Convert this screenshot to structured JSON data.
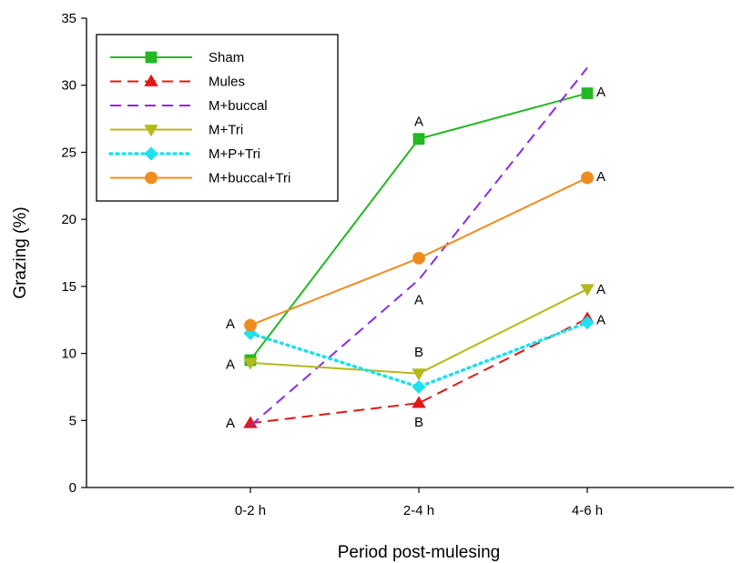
{
  "chart_data": {
    "type": "line",
    "title": "",
    "xlabel": "Period post-mulesing",
    "ylabel": "Grazing (%)",
    "categories": [
      "0-2 h",
      "2-4 h",
      "4-6 h"
    ],
    "ylim": [
      0,
      35
    ],
    "yticks": [
      0,
      5,
      10,
      15,
      20,
      25,
      30,
      35
    ],
    "grid": false,
    "legend_position": "top-left",
    "series": [
      {
        "name": "Sham",
        "values": [
          9.5,
          26.0,
          29.4
        ],
        "color": "#22b822",
        "dash": "solid",
        "marker": "square"
      },
      {
        "name": "Mules",
        "values": [
          4.8,
          6.3,
          12.6
        ],
        "color": "#e01818",
        "dash": "dashed",
        "marker": "triangle-up"
      },
      {
        "name": "M+buccal",
        "values": [
          4.6,
          15.5,
          31.3
        ],
        "color": "#8a2be2",
        "dash": "dashed",
        "marker": "none"
      },
      {
        "name": "M+Tri",
        "values": [
          9.3,
          8.5,
          14.8
        ],
        "color": "#b5b81a",
        "dash": "solid",
        "marker": "triangle-down"
      },
      {
        "name": "M+P+Tri",
        "values": [
          11.5,
          7.5,
          12.3
        ],
        "color": "#1ee0ee",
        "dash": "dotted",
        "marker": "diamond"
      },
      {
        "name": "M+buccal+Tri",
        "values": [
          12.1,
          17.1,
          23.1
        ],
        "color": "#f08c1e",
        "dash": "solid",
        "marker": "circle"
      }
    ],
    "annotations": [
      {
        "text": "A",
        "category": "0-2 h",
        "y": 12.2,
        "side": "left"
      },
      {
        "text": "A",
        "category": "0-2 h",
        "y": 9.2,
        "side": "left"
      },
      {
        "text": "A",
        "category": "0-2 h",
        "y": 4.8,
        "side": "left"
      },
      {
        "text": "A",
        "category": "2-4 h",
        "y": 27.3,
        "side": "above"
      },
      {
        "text": "A",
        "category": "2-4 h",
        "y": 14.0,
        "side": "below"
      },
      {
        "text": "B",
        "category": "2-4 h",
        "y": 10.1,
        "side": "above"
      },
      {
        "text": "B",
        "category": "2-4 h",
        "y": 4.9,
        "side": "below"
      },
      {
        "text": "A",
        "category": "4-6 h",
        "y": 29.5,
        "side": "right"
      },
      {
        "text": "A",
        "category": "4-6 h",
        "y": 23.2,
        "side": "right"
      },
      {
        "text": "A",
        "category": "4-6 h",
        "y": 14.8,
        "side": "right"
      },
      {
        "text": "A",
        "category": "4-6 h",
        "y": 12.5,
        "side": "right"
      }
    ]
  }
}
